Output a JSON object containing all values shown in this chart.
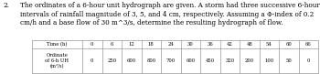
{
  "problem_number": "2.",
  "para_line1": "The ordinates of a 6-hour unit hydrograph are given. A storm had three successive 6-hour",
  "para_line2": "intervals of rainfall magnitude of 3, 5, and 4 cm, respectively. Assuming a Φ-index of 0.2",
  "para_line3": "cm/h and a base flow of 30 m^3/s, determine the resulting hydrograph of flow.",
  "time_header": "Time (h)",
  "time_values": [
    "0",
    "6",
    "12",
    "18",
    "24",
    "30",
    "36",
    "42",
    "48",
    "54",
    "60",
    "66"
  ],
  "ord_label1": "Ordinate",
  "ord_label2": "of 6-h UH",
  "ord_label3": "(m³/s)",
  "ord_values": [
    "0",
    "250",
    "600",
    "800",
    "700",
    "600",
    "450",
    "320",
    "200",
    "100",
    "50",
    "0"
  ],
  "text_color": "#000000",
  "bg_color": "#ffffff",
  "table_line_color": "#999999",
  "font_size_para": 5.2,
  "font_size_num": 4.0,
  "font_size_table": 3.8,
  "fig_width": 3.5,
  "fig_height": 0.81,
  "dpi": 100
}
